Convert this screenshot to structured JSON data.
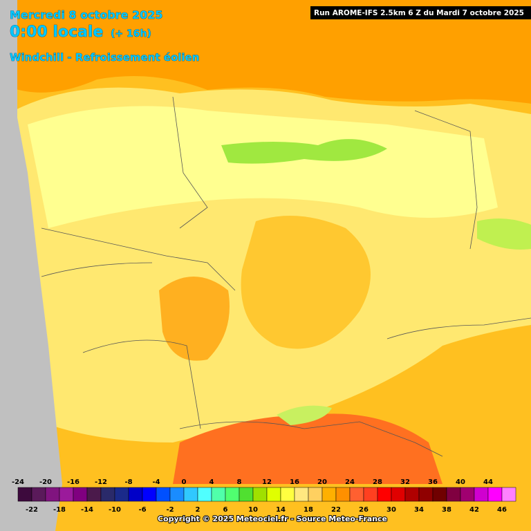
{
  "header": {
    "date": "Mercredi 8 octobre 2025",
    "time": "0:00 locale",
    "lead_time": "(+ 16h)",
    "parameter": "Windchill - Refroissement éolien",
    "run": "Run AROME-IFS 2.5km 6 Z du Mardi 7 octobre 2025"
  },
  "legend": {
    "values": [
      -24,
      -22,
      -20,
      -18,
      -16,
      -14,
      -12,
      -10,
      -8,
      -6,
      -4,
      -2,
      0,
      2,
      4,
      6,
      8,
      10,
      12,
      14,
      16,
      18,
      20,
      22,
      24,
      26,
      28,
      30,
      32,
      34,
      36,
      38,
      40,
      42,
      44,
      46
    ],
    "colors": [
      "#3d0a3d",
      "#5a1a5a",
      "#80147f",
      "#9b1a9b",
      "#800080",
      "#4b1a4b",
      "#2a2a6a",
      "#1a2a8a",
      "#0000c8",
      "#0000ff",
      "#0050ff",
      "#1a8cff",
      "#30c8ff",
      "#50ffff",
      "#50ffaa",
      "#50ff70",
      "#50e030",
      "#a0e000",
      "#e0ff00",
      "#ffff40",
      "#ffe880",
      "#ffd060",
      "#ffb000",
      "#ff9000",
      "#ff6030",
      "#ff4020",
      "#ff0000",
      "#e00000",
      "#b00000",
      "#900000",
      "#700000",
      "#800040",
      "#a00070",
      "#d000d0",
      "#ff00ff",
      "#ff80ff"
    ]
  },
  "footer": {
    "copyright": "Copyright © 2025 Meteociel.fr - Source Meteo-France"
  }
}
